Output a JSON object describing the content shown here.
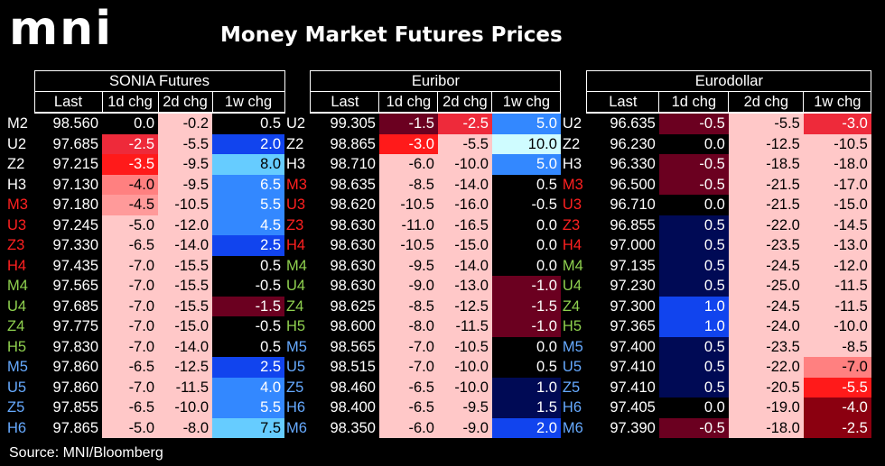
{
  "header": {
    "logo": "mni",
    "title": "Money Market Futures Prices"
  },
  "footer": {
    "source": "Source: MNI/Bloomberg"
  },
  "chart_data": {
    "type": "table",
    "groups": [
      "SONIA Futures",
      "Euribor",
      "Eurodollar"
    ],
    "subcolumns": [
      "Last",
      "1d chg",
      "2d chg",
      "1w chg"
    ],
    "rows": [
      [
        "M2",
        "98.560",
        "0.0",
        "-0.2",
        "0.5",
        "U2",
        "99.305",
        "-1.5",
        "-2.5",
        "5.0",
        "U2",
        "96.635",
        "-0.5",
        "-5.5",
        "-3.0"
      ],
      [
        "U2",
        "97.685",
        "-2.5",
        "-5.5",
        "2.0",
        "Z2",
        "98.865",
        "-3.0",
        "-5.5",
        "10.0",
        "Z2",
        "96.230",
        "0.0",
        "-12.5",
        "-10.5"
      ],
      [
        "Z2",
        "97.215",
        "-3.5",
        "-9.5",
        "8.0",
        "H3",
        "98.710",
        "-6.0",
        "-10.0",
        "5.0",
        "H3",
        "96.330",
        "-0.5",
        "-18.5",
        "-18.0"
      ],
      [
        "H3",
        "97.130",
        "-4.0",
        "-9.5",
        "6.5",
        "M3",
        "98.635",
        "-8.5",
        "-14.0",
        "0.5",
        "M3",
        "96.500",
        "-0.5",
        "-21.5",
        "-17.0"
      ],
      [
        "M3",
        "97.180",
        "-4.5",
        "-10.5",
        "5.5",
        "U3",
        "98.620",
        "-10.5",
        "-16.0",
        "-0.5",
        "U3",
        "96.710",
        "0.0",
        "-21.5",
        "-15.0"
      ],
      [
        "U3",
        "97.245",
        "-5.0",
        "-12.0",
        "4.5",
        "Z3",
        "98.630",
        "-11.0",
        "-16.5",
        "0.0",
        "Z3",
        "96.855",
        "0.5",
        "-22.0",
        "-14.5"
      ],
      [
        "Z3",
        "97.330",
        "-6.5",
        "-14.0",
        "2.5",
        "H4",
        "98.630",
        "-10.5",
        "-15.0",
        "0.0",
        "H4",
        "97.000",
        "0.5",
        "-23.5",
        "-13.0"
      ],
      [
        "H4",
        "97.435",
        "-7.0",
        "-15.5",
        "0.5",
        "M4",
        "98.630",
        "-9.5",
        "-14.0",
        "0.0",
        "M4",
        "97.135",
        "0.5",
        "-24.5",
        "-12.0"
      ],
      [
        "M4",
        "97.565",
        "-7.0",
        "-15.5",
        "-0.5",
        "U4",
        "98.630",
        "-9.0",
        "-13.0",
        "-1.0",
        "U4",
        "97.230",
        "0.5",
        "-25.0",
        "-11.5"
      ],
      [
        "U4",
        "97.685",
        "-7.0",
        "-15.5",
        "-1.5",
        "Z4",
        "98.625",
        "-8.5",
        "-12.5",
        "-1.5",
        "Z4",
        "97.300",
        "1.0",
        "-24.5",
        "-11.5"
      ],
      [
        "Z4",
        "97.775",
        "-7.0",
        "-15.0",
        "-0.5",
        "H5",
        "98.600",
        "-8.0",
        "-11.5",
        "-1.0",
        "H5",
        "97.365",
        "1.0",
        "-24.0",
        "-10.0"
      ],
      [
        "H5",
        "97.830",
        "-7.0",
        "-14.0",
        "0.5",
        "M5",
        "98.565",
        "-7.0",
        "-10.5",
        "0.0",
        "M5",
        "97.400",
        "0.5",
        "-23.5",
        "-8.5"
      ],
      [
        "M5",
        "97.860",
        "-6.5",
        "-12.5",
        "2.5",
        "U5",
        "98.515",
        "-7.0",
        "-10.0",
        "0.5",
        "U5",
        "97.410",
        "0.5",
        "-22.0",
        "-7.0"
      ],
      [
        "U5",
        "97.860",
        "-7.0",
        "-11.5",
        "4.0",
        "Z5",
        "98.460",
        "-6.5",
        "-10.0",
        "1.0",
        "Z5",
        "97.410",
        "0.5",
        "-20.5",
        "-5.5"
      ],
      [
        "Z5",
        "97.855",
        "-6.5",
        "-10.0",
        "5.5",
        "H6",
        "98.400",
        "-6.5",
        "-9.5",
        "1.5",
        "H6",
        "97.405",
        "0.0",
        "-19.0",
        "-4.0"
      ],
      [
        "H6",
        "97.865",
        "-5.0",
        "-8.0",
        "7.5",
        "M6",
        "98.350",
        "-6.0",
        "-9.0",
        "2.0",
        "M6",
        "97.390",
        "-0.5",
        "-18.0",
        "-2.5"
      ]
    ],
    "code_colors": {
      "M2": "#ffffff",
      "U2": "#ffffff",
      "Z2": "#ffffff",
      "H3": "#ffffff",
      "M3": "#ff2020",
      "U3": "#ff2020",
      "Z3": "#ff2020",
      "H4": "#ff2020",
      "M4": "#8fd14f",
      "U4": "#8fd14f",
      "Z4": "#8fd14f",
      "H5": "#8fd14f",
      "M5": "#66aaff",
      "U5": "#66aaff",
      "Z5": "#66aaff",
      "H6": "#66aaff",
      "M6": "#66aaff"
    },
    "cell_colors": {
      "neutral_neg": "#ffc8c8",
      "zero": "#000000",
      "pos_light": "#cffcff",
      "pos_sky": "#66ccff",
      "pos_mid": "#3388ff",
      "pos_blue": "#1144ee",
      "pos_dark": "#001a8c",
      "pos_navy": "#000a55",
      "neg_maroon": "#6b0020",
      "neg_bright": "#ff1a1a",
      "neg_red": "#ee2a3a",
      "neg_pink": "#ff8080",
      "neg_light": "#ff9a9a",
      "neg_dark": "#8b0010"
    }
  }
}
